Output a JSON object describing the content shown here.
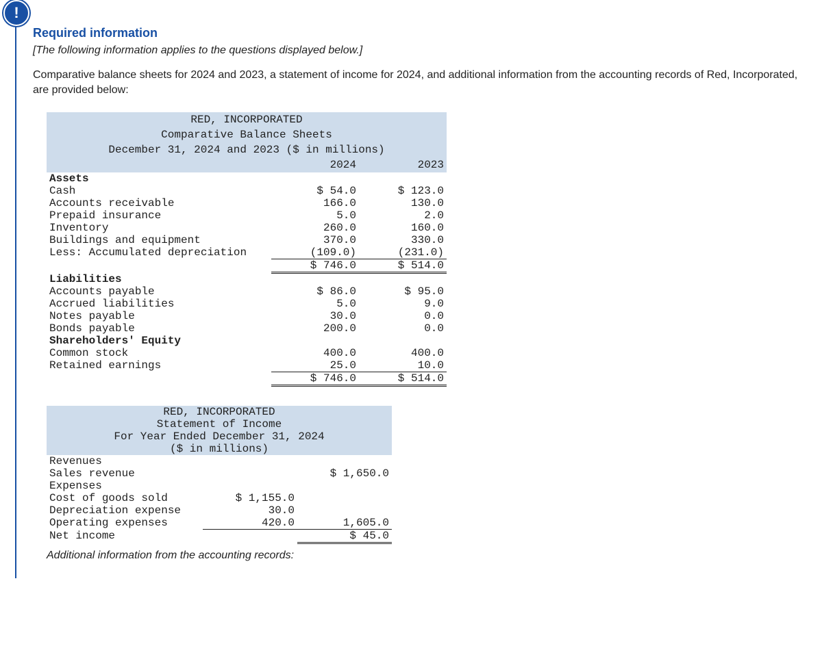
{
  "badge_glyph": "!",
  "heading": "Required information",
  "note": "[The following information applies to the questions displayed below.]",
  "intro": "Comparative balance sheets for 2024 and 2023, a statement of income for 2024, and additional information from the accounting records of Red, Incorporated, are provided below:",
  "balance_sheet": {
    "title1": "RED, INCORPORATED",
    "title2": "Comparative Balance Sheets",
    "title3": "December 31, 2024 and 2023 ($ in millions)",
    "col1": "2024",
    "col2": "2023",
    "assets_label": "Assets",
    "rows": {
      "cash": {
        "label": "Cash",
        "y2024": "$ 54.0",
        "y2023": "$ 123.0"
      },
      "ar": {
        "label": "Accounts receivable",
        "y2024": "166.0",
        "y2023": "130.0"
      },
      "prepaid": {
        "label": "Prepaid insurance",
        "y2024": "5.0",
        "y2023": "2.0"
      },
      "inv": {
        "label": "Inventory",
        "y2024": "260.0",
        "y2023": "160.0"
      },
      "bldg": {
        "label": "Buildings and equipment",
        "y2024": "370.0",
        "y2023": "330.0"
      },
      "accdep": {
        "label": "Less: Accumulated depreciation",
        "y2024": "(109.0)",
        "y2023": "(231.0)"
      },
      "total_assets": {
        "y2024": "$ 746.0",
        "y2023": "$ 514.0"
      }
    },
    "liab_label": "Liabilities",
    "liab": {
      "ap": {
        "label": "Accounts payable",
        "y2024": "$ 86.0",
        "y2023": "$ 95.0"
      },
      "accr": {
        "label": "Accrued liabilities",
        "y2024": "5.0",
        "y2023": "9.0"
      },
      "np": {
        "label": "Notes payable",
        "y2024": "30.0",
        "y2023": "0.0"
      },
      "bp": {
        "label": "Bonds payable",
        "y2024": "200.0",
        "y2023": "0.0"
      }
    },
    "equity_label": "Shareholders' Equity",
    "equity": {
      "cs": {
        "label": "Common stock",
        "y2024": "400.0",
        "y2023": "400.0"
      },
      "re": {
        "label": "Retained earnings",
        "y2024": "25.0",
        "y2023": "10.0"
      },
      "total": {
        "y2024": "$ 746.0",
        "y2023": "$ 514.0"
      }
    }
  },
  "income_stmt": {
    "title1": "RED, INCORPORATED",
    "title2": "Statement of Income",
    "title3": "For Year Ended December 31, 2024",
    "title4": "($ in millions)",
    "rows": {
      "rev_label": "Revenues",
      "sales": {
        "label": "Sales revenue",
        "v2": "$ 1,650.0"
      },
      "exp_label": "Expenses",
      "cogs": {
        "label": "Cost of goods sold",
        "v1": "$ 1,155.0"
      },
      "dep": {
        "label": "Depreciation expense",
        "v1": "30.0"
      },
      "opex": {
        "label": "Operating expenses",
        "v1": "420.0",
        "v2": "1,605.0"
      },
      "ni": {
        "label": "Net income",
        "v2": "$ 45.0"
      }
    }
  },
  "footer": "Additional information from the accounting records:"
}
